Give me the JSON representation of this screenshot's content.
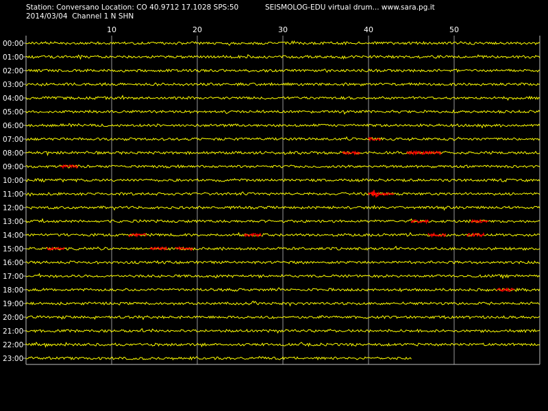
{
  "header": {
    "station_line": "Station: Conversano Location: CO 40.9712 17.1028 SPS:50",
    "title": "SEISMOLOG-EDU virtual drum... www.sara.pg.it",
    "date_line": "2014/03/04  Channel 1 N SHN"
  },
  "colors": {
    "background": "#000000",
    "trace": "#ffff00",
    "event": "#ff0000",
    "grid": "#c0c0c0",
    "text": "#ffffff"
  },
  "chart_data": {
    "type": "line",
    "title": "",
    "xlabel": "",
    "ylabel": "",
    "xlim": [
      0,
      60
    ],
    "x_ticks": [
      10,
      20,
      30,
      40,
      50
    ],
    "x_tick_labels": [
      "10",
      "20",
      "30",
      "40",
      "50"
    ],
    "grid": true,
    "legend": "none",
    "rows": [
      "00:00",
      "01:00",
      "02:00",
      "03:00",
      "04:00",
      "05:00",
      "06:00",
      "07:00",
      "08:00",
      "09:00",
      "10:00",
      "11:00",
      "12:00",
      "13:00",
      "14:00",
      "15:00",
      "16:00",
      "17:00",
      "18:00",
      "19:00",
      "20:00",
      "21:00",
      "22:00",
      "23:00"
    ],
    "trace_end_minute": [
      60,
      60,
      60,
      60,
      60,
      60,
      60,
      60,
      60,
      60,
      60,
      60,
      60,
      60,
      60,
      60,
      60,
      60,
      60,
      60,
      60,
      60,
      60,
      45
    ],
    "events": [
      {
        "row": "07:00",
        "start": 40.0,
        "end": 41.5
      },
      {
        "row": "08:00",
        "start": 37.0,
        "end": 39.0
      },
      {
        "row": "08:00",
        "start": 44.5,
        "end": 46.5
      },
      {
        "row": "08:00",
        "start": 46.5,
        "end": 48.5
      },
      {
        "row": "09:00",
        "start": 4.0,
        "end": 6.0
      },
      {
        "row": "11:00",
        "start": 40.0,
        "end": 43.0
      },
      {
        "row": "13:00",
        "start": 45.0,
        "end": 47.0
      },
      {
        "row": "13:00",
        "start": 52.0,
        "end": 54.0
      },
      {
        "row": "14:00",
        "start": 12.0,
        "end": 14.0
      },
      {
        "row": "14:00",
        "start": 25.5,
        "end": 27.5
      },
      {
        "row": "14:00",
        "start": 47.0,
        "end": 49.0
      },
      {
        "row": "14:00",
        "start": 51.5,
        "end": 53.5
      },
      {
        "row": "15:00",
        "start": 2.5,
        "end": 4.5
      },
      {
        "row": "15:00",
        "start": 14.5,
        "end": 16.5
      },
      {
        "row": "15:00",
        "start": 17.5,
        "end": 19.5
      },
      {
        "row": "18:00",
        "start": 55.0,
        "end": 57.0
      }
    ]
  }
}
